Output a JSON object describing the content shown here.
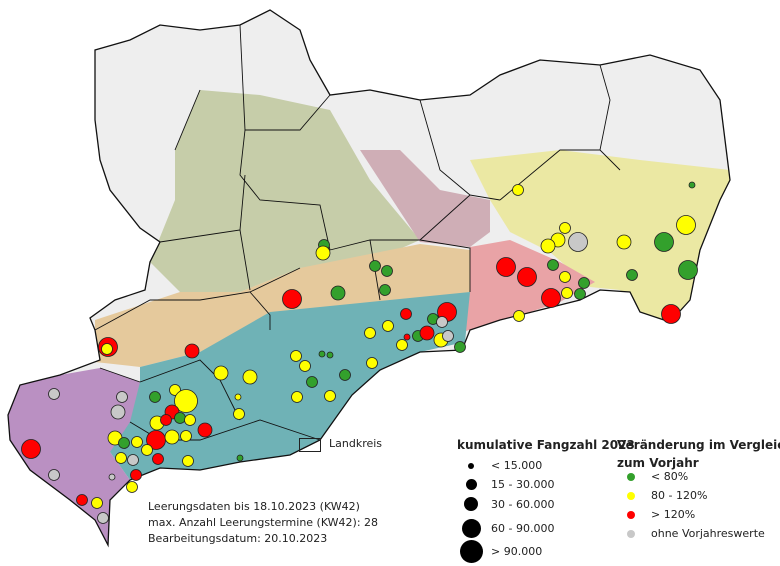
{
  "landkreis_legend": {
    "label": "Landkreis"
  },
  "info": {
    "line1": "Leerungsdaten bis 18.10.2023 (KW42)",
    "line2": "max. Anzahl Leerungstermine (KW42): 28",
    "line3": "Bearbeitungsdatum: 20.10.2023"
  },
  "size_legend": {
    "title": "kumulative Fangzahl 2023",
    "items": [
      {
        "label": "< 15.000",
        "class": 1
      },
      {
        "label": "15 - 30.000",
        "class": 2
      },
      {
        "label": "30 - 60.000",
        "class": 3
      },
      {
        "label": "60 - 90.000",
        "class": 4
      },
      {
        "label": "> 90.000",
        "class": 5
      }
    ]
  },
  "change_legend": {
    "title_line1": "Veränderung im Vergleich",
    "title_line2": "zum Vorjahr",
    "items": [
      {
        "label": "< 80%",
        "color": "#33a02c"
      },
      {
        "label": "80 - 120%",
        "color": "#ffff00"
      },
      {
        "label": "> 120%",
        "color": "#ff0000"
      },
      {
        "label": "ohne Vorjahreswerte",
        "color": "#c8c8c8"
      }
    ]
  }
}
